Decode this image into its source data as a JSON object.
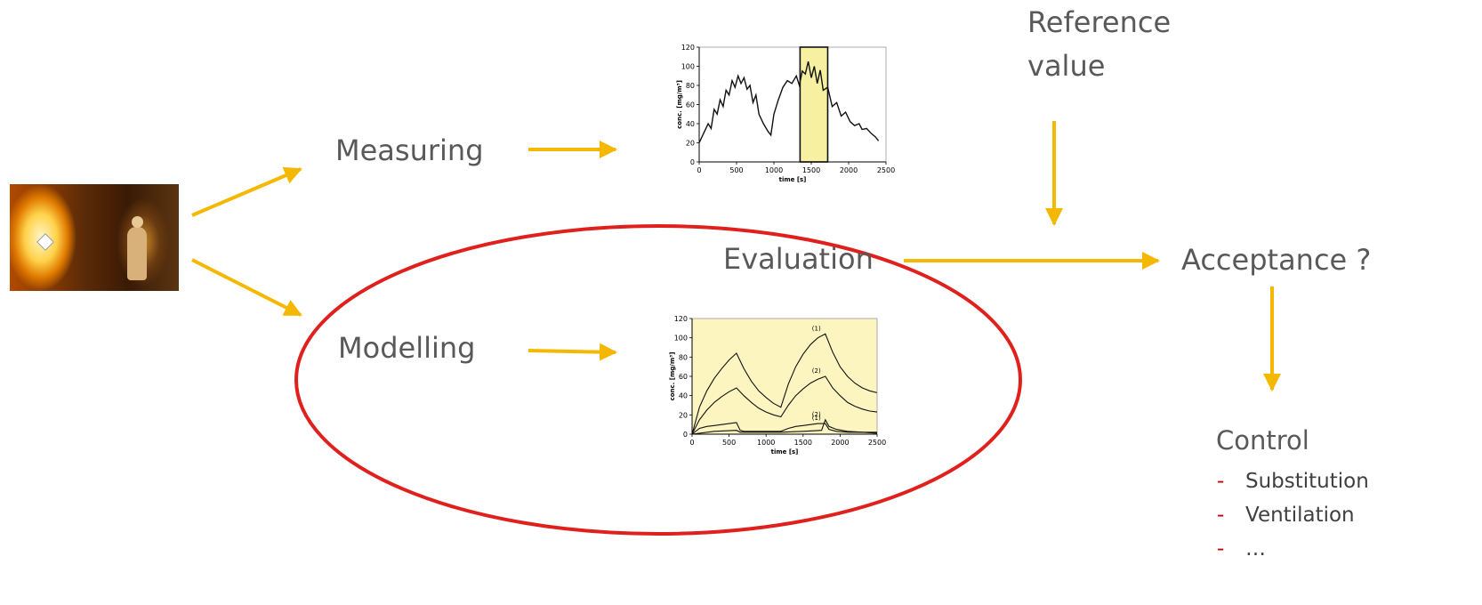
{
  "labels": {
    "measuring": "Measuring",
    "modelling": "Modelling",
    "evaluation": "Evaluation",
    "reference_line1": "Reference",
    "reference_line2": "value",
    "acceptance": "Acceptance ?",
    "control": "Control"
  },
  "control_items": [
    {
      "dash": "-",
      "label": "Substitution"
    },
    {
      "dash": "-",
      "label": "Ventilation"
    },
    {
      "dash": "-",
      "label": "…"
    }
  ],
  "colors": {
    "arrow": "#f5b800",
    "ellipse": "#e0201c",
    "chart_fill": "#fdf5c0",
    "highlight_fill": "#f6f0a0"
  },
  "icons": {
    "workplace_photo": "furnace-worker-photo"
  },
  "chart_data": [
    {
      "type": "line",
      "ylabel": "conc. [mg/m³]",
      "xlabel": "time [s]",
      "xlim": [
        0,
        2500
      ],
      "ylim": [
        0,
        120
      ],
      "x_ticks": [
        "0",
        "500",
        "1000",
        "1500",
        "2000",
        "2500"
      ],
      "y_ticks": [
        "0",
        "20",
        "40",
        "60",
        "80",
        "100",
        "120"
      ],
      "highlight_x": [
        1350,
        1720
      ],
      "series": [
        {
          "values": [
            [
              0,
              20
            ],
            [
              60,
              30
            ],
            [
              120,
              40
            ],
            [
              160,
              35
            ],
            [
              200,
              55
            ],
            [
              240,
              50
            ],
            [
              280,
              65
            ],
            [
              320,
              58
            ],
            [
              360,
              75
            ],
            [
              400,
              70
            ],
            [
              440,
              85
            ],
            [
              480,
              78
            ],
            [
              520,
              90
            ],
            [
              560,
              82
            ],
            [
              600,
              88
            ],
            [
              640,
              76
            ],
            [
              680,
              80
            ],
            [
              720,
              62
            ],
            [
              760,
              70
            ],
            [
              800,
              50
            ],
            [
              860,
              40
            ],
            [
              920,
              32
            ],
            [
              960,
              28
            ],
            [
              1000,
              50
            ],
            [
              1060,
              65
            ],
            [
              1120,
              78
            ],
            [
              1180,
              85
            ],
            [
              1240,
              82
            ],
            [
              1300,
              90
            ],
            [
              1340,
              80
            ],
            [
              1380,
              95
            ],
            [
              1420,
              92
            ],
            [
              1460,
              105
            ],
            [
              1500,
              88
            ],
            [
              1540,
              100
            ],
            [
              1580,
              82
            ],
            [
              1620,
              96
            ],
            [
              1660,
              75
            ],
            [
              1720,
              78
            ],
            [
              1780,
              58
            ],
            [
              1840,
              62
            ],
            [
              1900,
              48
            ],
            [
              1960,
              52
            ],
            [
              2020,
              42
            ],
            [
              2080,
              38
            ],
            [
              2140,
              40
            ],
            [
              2180,
              34
            ],
            [
              2240,
              35
            ],
            [
              2300,
              30
            ],
            [
              2360,
              26
            ],
            [
              2400,
              22
            ]
          ]
        }
      ]
    },
    {
      "type": "line",
      "ylabel": "conc. [mg/m³]",
      "xlabel": "time [s]",
      "xlim": [
        0,
        2500
      ],
      "ylim": [
        0,
        120
      ],
      "x_ticks": [
        "0",
        "500",
        "1000",
        "1500",
        "2000",
        "2500"
      ],
      "y_ticks": [
        "0",
        "20",
        "40",
        "60",
        "80",
        "100",
        "120"
      ],
      "series": [
        {
          "name": "(1)",
          "values": [
            [
              0,
              0
            ],
            [
              100,
              28
            ],
            [
              200,
              45
            ],
            [
              300,
              58
            ],
            [
              400,
              68
            ],
            [
              500,
              77
            ],
            [
              600,
              84
            ],
            [
              700,
              68
            ],
            [
              800,
              55
            ],
            [
              900,
              45
            ],
            [
              1000,
              38
            ],
            [
              1100,
              32
            ],
            [
              1200,
              28
            ],
            [
              1300,
              52
            ],
            [
              1400,
              70
            ],
            [
              1500,
              83
            ],
            [
              1600,
              93
            ],
            [
              1700,
              100
            ],
            [
              1800,
              104
            ],
            [
              1900,
              85
            ],
            [
              2000,
              70
            ],
            [
              2100,
              60
            ],
            [
              2200,
              53
            ],
            [
              2300,
              48
            ],
            [
              2400,
              45
            ],
            [
              2500,
              43
            ]
          ]
        },
        {
          "name": "(2)",
          "values": [
            [
              0,
              0
            ],
            [
              100,
              15
            ],
            [
              200,
              25
            ],
            [
              300,
              33
            ],
            [
              400,
              39
            ],
            [
              500,
              44
            ],
            [
              600,
              48
            ],
            [
              700,
              40
            ],
            [
              800,
              33
            ],
            [
              900,
              27
            ],
            [
              1000,
              23
            ],
            [
              1100,
              20
            ],
            [
              1200,
              18
            ],
            [
              1300,
              30
            ],
            [
              1400,
              40
            ],
            [
              1500,
              47
            ],
            [
              1600,
              53
            ],
            [
              1700,
              57
            ],
            [
              1800,
              60
            ],
            [
              1900,
              48
            ],
            [
              2000,
              40
            ],
            [
              2100,
              33
            ],
            [
              2200,
              29
            ],
            [
              2300,
              26
            ],
            [
              2400,
              24
            ],
            [
              2500,
              23
            ]
          ]
        },
        {
          "name": "(1)",
          "values": [
            [
              0,
              0
            ],
            [
              100,
              6
            ],
            [
              200,
              8
            ],
            [
              300,
              9
            ],
            [
              400,
              10
            ],
            [
              500,
              11
            ],
            [
              600,
              12
            ],
            [
              650,
              4
            ],
            [
              700,
              3
            ],
            [
              1000,
              3
            ],
            [
              1200,
              3
            ],
            [
              1300,
              6
            ],
            [
              1400,
              8
            ],
            [
              1500,
              9
            ],
            [
              1600,
              10
            ],
            [
              1700,
              11
            ],
            [
              1800,
              11
            ],
            [
              1850,
              5
            ],
            [
              1950,
              3
            ],
            [
              2100,
              2
            ],
            [
              2300,
              2
            ],
            [
              2500,
              1
            ]
          ]
        },
        {
          "name": "(2)",
          "values": [
            [
              0,
              0
            ],
            [
              300,
              3
            ],
            [
              600,
              4
            ],
            [
              650,
              2
            ],
            [
              1200,
              2
            ],
            [
              1500,
              3
            ],
            [
              1750,
              4
            ],
            [
              1800,
              15
            ],
            [
              1850,
              8
            ],
            [
              1950,
              5
            ],
            [
              2100,
              3
            ],
            [
              2300,
              2
            ],
            [
              2500,
              2
            ]
          ]
        }
      ]
    }
  ]
}
